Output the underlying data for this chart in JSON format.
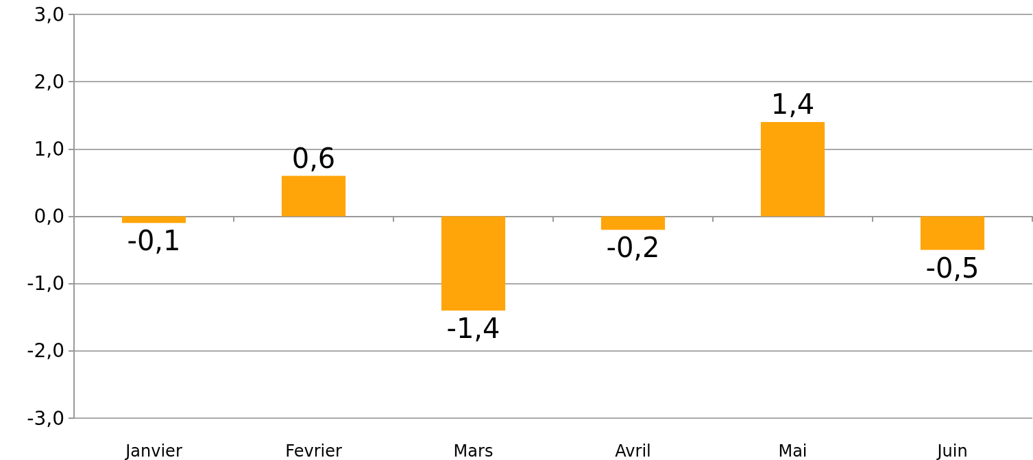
{
  "chart_data": {
    "type": "bar",
    "categories": [
      "Janvier",
      "Fevrier",
      "Mars",
      "Avril",
      "Mai",
      "Juin"
    ],
    "values": [
      -0.1,
      0.6,
      -1.4,
      -0.2,
      1.4,
      -0.5
    ],
    "value_labels": [
      "-0,1",
      "0,6",
      "-1,4",
      "-0,2",
      "1,4",
      "-0,5"
    ],
    "color": "#ffa50a",
    "ylim": [
      -3,
      3
    ],
    "yticks": [
      {
        "value": -3,
        "label": "-3,0"
      },
      {
        "value": -2,
        "label": "-2,0"
      },
      {
        "value": -1,
        "label": "-1,0"
      },
      {
        "value": 0,
        "label": "0,0"
      },
      {
        "value": 1,
        "label": "1,0"
      },
      {
        "value": 2,
        "label": "2,0"
      },
      {
        "value": 3,
        "label": "3,0"
      }
    ],
    "grid": "y"
  }
}
